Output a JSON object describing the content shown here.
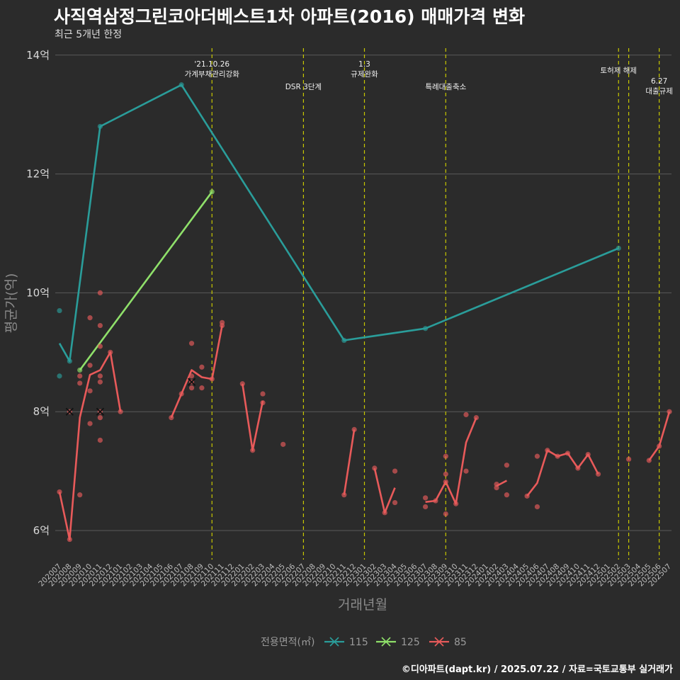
{
  "header": {
    "title": "사직역삼정그린코아더베스트1차 아파트(2016) 매매가격 변화",
    "subtitle": "최근 5개년 한정",
    "caption": "©디아파트(dapt.kr) / 2025.07.22 / 자료=국토교통부 실거래가"
  },
  "chart_data": {
    "type": "line",
    "xlabel": "거래년월",
    "ylabel": "평균가(억)",
    "y_unit": "억",
    "ylim": [
      5.5,
      14.2
    ],
    "yticks": [
      6,
      8,
      10,
      12,
      14
    ],
    "ytick_labels": [
      "6억",
      "8억",
      "10억",
      "12억",
      "14억"
    ],
    "grid": true,
    "legend_position": "bottom",
    "legend_title": "전용면적(㎡)",
    "categories": [
      "202007",
      "202008",
      "202009",
      "202010",
      "202011",
      "202012",
      "202101",
      "202102",
      "202103",
      "202104",
      "202105",
      "202106",
      "202107",
      "202108",
      "202109",
      "202110",
      "202111",
      "202112",
      "202201",
      "202202",
      "202203",
      "202204",
      "202205",
      "202206",
      "202207",
      "202208",
      "202209",
      "202210",
      "202211",
      "202212",
      "202301",
      "202302",
      "202303",
      "202304",
      "202305",
      "202306",
      "202307",
      "202308",
      "202309",
      "202310",
      "202311",
      "202312",
      "202401",
      "202402",
      "202403",
      "202404",
      "202405",
      "202406",
      "202407",
      "202408",
      "202409",
      "202410",
      "202411",
      "202412",
      "202501",
      "202502",
      "202503",
      "202504",
      "202505",
      "202506",
      "202507"
    ],
    "series": [
      {
        "name": "115",
        "color": "#2a9d9a",
        "line": [
          [
            "202007",
            9.15
          ],
          [
            "202008",
            8.85
          ],
          [
            "202011",
            12.8
          ],
          [
            "202107",
            13.5
          ],
          [
            "202211",
            9.2
          ],
          [
            "202307",
            9.4
          ],
          [
            "202502",
            10.75
          ]
        ],
        "points": [
          [
            "202007",
            9.7
          ],
          [
            "202007",
            8.6
          ],
          [
            "202008",
            8.85
          ],
          [
            "202011",
            12.8
          ],
          [
            "202107",
            13.5
          ],
          [
            "202211",
            9.2
          ],
          [
            "202307",
            9.4
          ],
          [
            "202502",
            10.75
          ]
        ]
      },
      {
        "name": "125",
        "color": "#8fe06a",
        "line": [
          [
            "202009",
            8.7
          ],
          [
            "202110",
            11.7
          ]
        ],
        "points": [
          [
            "202009",
            8.7
          ],
          [
            "202110",
            11.7
          ]
        ]
      },
      {
        "name": "85",
        "color": "#e85a5a",
        "line": [
          [
            [
              "202007",
              6.65
            ],
            [
              "202008",
              5.85
            ],
            [
              "202009",
              7.9
            ],
            [
              "202010",
              8.62
            ],
            [
              "202011",
              8.7
            ],
            [
              "202012",
              9.0
            ],
            [
              "202101",
              8.0
            ]
          ],
          [
            [
              "202106",
              7.9
            ],
            [
              "202107",
              8.3
            ],
            [
              "202108",
              8.7
            ],
            [
              "202109",
              8.58
            ],
            [
              "202110",
              8.55
            ],
            [
              "202111",
              9.45
            ]
          ],
          [
            [
              "202201",
              8.47
            ],
            [
              "202202",
              7.35
            ],
            [
              "202203",
              8.18
            ]
          ],
          [
            [
              "202211",
              6.6
            ],
            [
              "202212",
              7.7
            ]
          ],
          [
            [
              "202302",
              7.05
            ],
            [
              "202303",
              6.3
            ],
            [
              "202304",
              6.72
            ]
          ],
          [
            [
              "202307",
              6.48
            ],
            [
              "202308",
              6.5
            ],
            [
              "202309",
              6.82
            ],
            [
              "202310",
              6.45
            ],
            [
              "202311",
              7.48
            ],
            [
              "202312",
              7.9
            ]
          ],
          [
            [
              "202402",
              6.75
            ],
            [
              "202403",
              6.84
            ]
          ],
          [
            [
              "202405",
              6.58
            ],
            [
              "202406",
              6.8
            ],
            [
              "202407",
              7.35
            ],
            [
              "202408",
              7.25
            ],
            [
              "202409",
              7.3
            ],
            [
              "202410",
              7.05
            ],
            [
              "202411",
              7.28
            ],
            [
              "202412",
              6.95
            ]
          ],
          [
            [
              "202505",
              7.18
            ],
            [
              "202506",
              7.42
            ],
            [
              "202507",
              8.0
            ]
          ]
        ],
        "points": [
          [
            "202007",
            6.65
          ],
          [
            "202008",
            5.85
          ],
          [
            "202008",
            8.0
          ],
          [
            "202009",
            8.6
          ],
          [
            "202009",
            8.48
          ],
          [
            "202009",
            6.6
          ],
          [
            "202010",
            9.58
          ],
          [
            "202010",
            8.78
          ],
          [
            "202010",
            8.35
          ],
          [
            "202010",
            7.8
          ],
          [
            "202011",
            10.0
          ],
          [
            "202011",
            9.45
          ],
          [
            "202011",
            9.1
          ],
          [
            "202011",
            8.6
          ],
          [
            "202011",
            8.5
          ],
          [
            "202011",
            8.0
          ],
          [
            "202011",
            7.9
          ],
          [
            "202011",
            7.52
          ],
          [
            "202012",
            9.0
          ],
          [
            "202101",
            8.0
          ],
          [
            "202106",
            7.9
          ],
          [
            "202107",
            8.3
          ],
          [
            "202108",
            9.15
          ],
          [
            "202108",
            8.6
          ],
          [
            "202108",
            8.4
          ],
          [
            "202108",
            8.5
          ],
          [
            "202109",
            8.75
          ],
          [
            "202109",
            8.4
          ],
          [
            "202110",
            8.55
          ],
          [
            "202111",
            9.5
          ],
          [
            "202111",
            9.45
          ],
          [
            "202201",
            8.47
          ],
          [
            "202202",
            7.35
          ],
          [
            "202203",
            8.3
          ],
          [
            "202203",
            8.15
          ],
          [
            "202205",
            7.45
          ],
          [
            "202211",
            6.6
          ],
          [
            "202212",
            7.7
          ],
          [
            "202302",
            7.05
          ],
          [
            "202303",
            6.3
          ],
          [
            "202304",
            7.0
          ],
          [
            "202304",
            6.47
          ],
          [
            "202307",
            6.55
          ],
          [
            "202307",
            6.4
          ],
          [
            "202308",
            6.5
          ],
          [
            "202309",
            7.25
          ],
          [
            "202309",
            6.95
          ],
          [
            "202309",
            6.82
          ],
          [
            "202309",
            6.28
          ],
          [
            "202310",
            6.45
          ],
          [
            "202311",
            7.95
          ],
          [
            "202311",
            7.0
          ],
          [
            "202312",
            7.9
          ],
          [
            "202402",
            6.78
          ],
          [
            "202402",
            6.72
          ],
          [
            "202403",
            7.1
          ],
          [
            "202403",
            6.6
          ],
          [
            "202405",
            6.58
          ],
          [
            "202406",
            7.25
          ],
          [
            "202406",
            6.4
          ],
          [
            "202407",
            7.35
          ],
          [
            "202408",
            7.25
          ],
          [
            "202409",
            7.3
          ],
          [
            "202410",
            7.05
          ],
          [
            "202411",
            7.28
          ],
          [
            "202412",
            6.95
          ],
          [
            "202503",
            7.2
          ],
          [
            "202505",
            7.18
          ],
          [
            "202506",
            7.42
          ],
          [
            "202507",
            8.0
          ]
        ],
        "x_markers": [
          [
            "202008",
            8.0
          ],
          [
            "202011",
            8.0
          ],
          [
            "202108",
            8.5
          ]
        ]
      }
    ],
    "annotations": [
      {
        "x": "202110",
        "lines": [
          "'21.10.26",
          "가계부채관리강화"
        ]
      },
      {
        "x": "202207",
        "lines": [
          "DSR 3단계"
        ]
      },
      {
        "x": "202301",
        "lines": [
          "1.3",
          "규제완화"
        ]
      },
      {
        "x": "202309",
        "lines": [
          "특례대출축소"
        ]
      },
      {
        "x": "202502",
        "lines": [
          "토허제 해제"
        ]
      },
      {
        "x": "202503",
        "lines": [
          ""
        ]
      },
      {
        "x": "202506",
        "lines": [
          "6.27",
          "대출규제"
        ]
      }
    ]
  }
}
